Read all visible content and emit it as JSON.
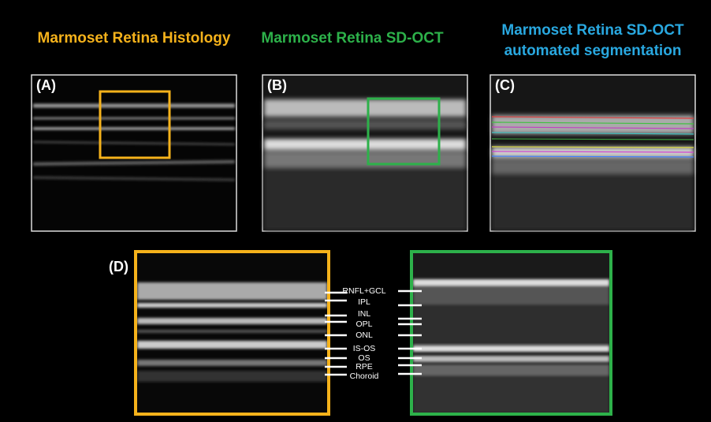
{
  "titles": {
    "histology": "Marmoset Retina Histology",
    "oct": "Marmoset Retina SD-OCT",
    "segmentation": [
      "Marmoset Retina SD-OCT",
      "automated segmentation"
    ]
  },
  "panels": {
    "a": "(A)",
    "b": "(B)",
    "c": "(C)",
    "d": "(D)"
  },
  "layers": [
    "RNFL+GCL",
    "IPL",
    "INL",
    "OPL",
    "ONL",
    "IS-OS",
    "OS",
    "RPE",
    "Choroid"
  ]
}
